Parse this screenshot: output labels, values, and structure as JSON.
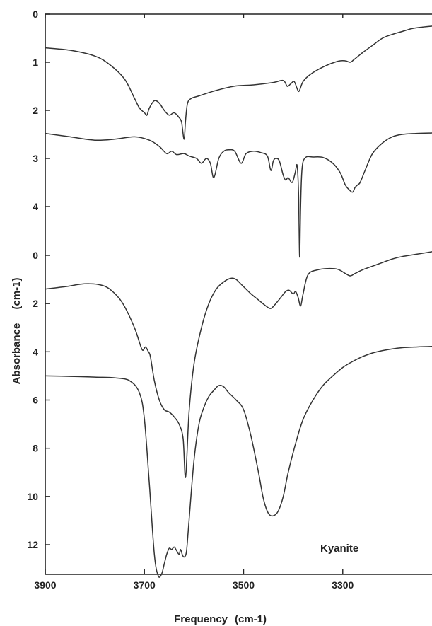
{
  "chart_data": {
    "type": "line",
    "title": "",
    "xlabel": "Frequency",
    "xlabel_unit": "(cm-1)",
    "ylabel": "Absorbance",
    "ylabel_unit": "(cm-1)",
    "annotation": "Kyanite",
    "xlim": [
      3900,
      3120
    ],
    "x_direction": "decreasing",
    "x_ticks": [
      3900,
      3700,
      3500,
      3300
    ],
    "x_tick_labels": [
      "3900",
      "3700",
      "3500",
      "3300"
    ],
    "y_axis_upper": {
      "ylim": [
        0,
        4
      ],
      "inverted": true,
      "ticks": [
        0,
        1,
        2,
        3,
        4
      ],
      "tick_labels": [
        "0",
        "1",
        "2",
        "3",
        "4"
      ]
    },
    "y_axis_lower": {
      "ylim": [
        0,
        13.5
      ],
      "inverted": true,
      "ticks": [
        0,
        2,
        4,
        6,
        8,
        10,
        12
      ],
      "tick_labels": [
        "0",
        "2",
        "4",
        "6",
        "8",
        "10",
        "12"
      ]
    },
    "grid": false,
    "series": [
      {
        "panel": "upper",
        "x": [
          3900,
          3850,
          3800,
          3770,
          3740,
          3720,
          3710,
          3700,
          3695,
          3690,
          3680,
          3670,
          3660,
          3650,
          3640,
          3630,
          3625,
          3620,
          3617,
          3613,
          3605,
          3590,
          3560,
          3520,
          3480,
          3440,
          3420,
          3412,
          3405,
          3398,
          3392,
          3388,
          3380,
          3365,
          3340,
          3310,
          3295,
          3285,
          3278,
          3260,
          3240,
          3220,
          3200,
          3180,
          3160,
          3140,
          3120
        ],
        "y": [
          0.7,
          0.75,
          0.87,
          1.05,
          1.35,
          1.75,
          1.95,
          2.05,
          2.1,
          1.95,
          1.8,
          1.85,
          2.0,
          2.1,
          2.05,
          2.15,
          2.25,
          2.6,
          2.2,
          1.85,
          1.75,
          1.7,
          1.6,
          1.5,
          1.47,
          1.42,
          1.38,
          1.5,
          1.45,
          1.4,
          1.55,
          1.6,
          1.4,
          1.25,
          1.1,
          0.98,
          0.97,
          1.0,
          0.95,
          0.8,
          0.65,
          0.5,
          0.42,
          0.36,
          0.3,
          0.27,
          0.25
        ]
      },
      {
        "panel": "upper",
        "x": [
          3900,
          3850,
          3800,
          3760,
          3720,
          3690,
          3670,
          3655,
          3645,
          3635,
          3620,
          3610,
          3595,
          3585,
          3575,
          3567,
          3560,
          3550,
          3540,
          3530,
          3518,
          3505,
          3495,
          3480,
          3465,
          3452,
          3445,
          3440,
          3435,
          3428,
          3420,
          3415,
          3410,
          3402,
          3396,
          3392,
          3389,
          3387,
          3385,
          3382,
          3375,
          3360,
          3340,
          3320,
          3305,
          3295,
          3287,
          3280,
          3275,
          3270,
          3265,
          3255,
          3240,
          3220,
          3200,
          3180,
          3150,
          3120
        ],
        "y": [
          2.48,
          2.55,
          2.62,
          2.6,
          2.55,
          2.62,
          2.75,
          2.9,
          2.85,
          2.92,
          2.9,
          2.95,
          3.0,
          3.1,
          3.0,
          3.1,
          3.4,
          3.0,
          2.85,
          2.82,
          2.85,
          3.1,
          2.9,
          2.85,
          2.88,
          2.95,
          3.25,
          3.05,
          3.0,
          3.05,
          3.35,
          3.45,
          3.4,
          3.5,
          3.3,
          3.15,
          3.8,
          5.05,
          4.0,
          3.2,
          2.98,
          2.97,
          2.98,
          3.1,
          3.3,
          3.55,
          3.65,
          3.7,
          3.6,
          3.55,
          3.5,
          3.25,
          2.9,
          2.68,
          2.55,
          2.5,
          2.48,
          2.47
        ]
      },
      {
        "panel": "lower",
        "x": [
          3900,
          3860,
          3830,
          3810,
          3790,
          3770,
          3745,
          3720,
          3705,
          3698,
          3692,
          3688,
          3680,
          3670,
          3660,
          3650,
          3640,
          3630,
          3622,
          3617,
          3610,
          3600,
          3585,
          3570,
          3555,
          3540,
          3525,
          3515,
          3505,
          3495,
          3485,
          3470,
          3455,
          3445,
          3435,
          3425,
          3415,
          3408,
          3400,
          3395,
          3390,
          3385,
          3380,
          3370,
          3350,
          3330,
          3310,
          3295,
          3285,
          3275,
          3260,
          3240,
          3220,
          3200,
          3180,
          3150,
          3120
        ],
        "y": [
          1.4,
          1.3,
          1.2,
          1.18,
          1.22,
          1.4,
          1.95,
          3.0,
          3.9,
          3.8,
          4.0,
          4.2,
          5.2,
          6.0,
          6.4,
          6.5,
          6.7,
          7.0,
          7.6,
          9.2,
          6.5,
          4.5,
          3.0,
          2.0,
          1.4,
          1.1,
          0.95,
          1.0,
          1.2,
          1.4,
          1.6,
          1.85,
          2.1,
          2.2,
          2.0,
          1.75,
          1.5,
          1.45,
          1.6,
          1.5,
          1.75,
          2.1,
          1.6,
          0.8,
          0.6,
          0.55,
          0.58,
          0.75,
          0.85,
          0.75,
          0.6,
          0.45,
          0.3,
          0.15,
          0.05,
          -0.05,
          -0.15
        ]
      },
      {
        "panel": "lower",
        "x": [
          3900,
          3850,
          3800,
          3760,
          3730,
          3710,
          3700,
          3690,
          3680,
          3672,
          3665,
          3660,
          3655,
          3650,
          3645,
          3640,
          3635,
          3630,
          3627,
          3623,
          3619,
          3615,
          3610,
          3600,
          3590,
          3580,
          3570,
          3560,
          3550,
          3540,
          3530,
          3515,
          3500,
          3485,
          3470,
          3460,
          3450,
          3440,
          3430,
          3420,
          3410,
          3395,
          3380,
          3360,
          3340,
          3320,
          3300,
          3280,
          3260,
          3240,
          3220,
          3200,
          3180,
          3150,
          3120
        ],
        "y": [
          5.0,
          5.02,
          5.05,
          5.08,
          5.2,
          5.7,
          6.8,
          9.5,
          12.4,
          13.3,
          13.2,
          12.8,
          12.4,
          12.15,
          12.2,
          12.1,
          12.25,
          12.4,
          12.2,
          12.45,
          12.5,
          12.25,
          11.0,
          8.5,
          7.0,
          6.3,
          5.85,
          5.6,
          5.4,
          5.45,
          5.7,
          6.0,
          6.4,
          7.5,
          9.0,
          10.1,
          10.7,
          10.8,
          10.6,
          10.0,
          9.0,
          7.8,
          6.8,
          6.0,
          5.4,
          5.0,
          4.65,
          4.4,
          4.2,
          4.05,
          3.95,
          3.88,
          3.83,
          3.8,
          3.78
        ]
      }
    ]
  }
}
